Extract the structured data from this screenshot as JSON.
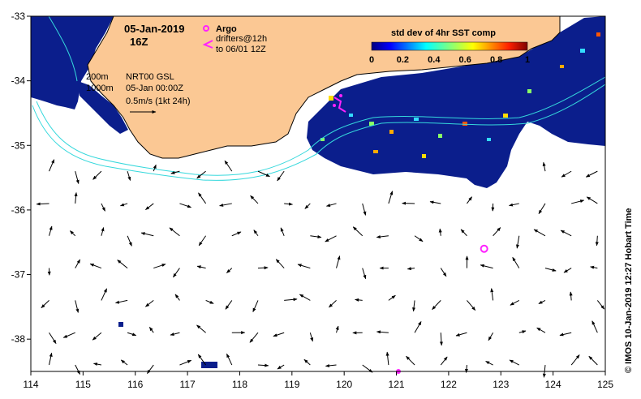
{
  "map": {
    "date_line": "05-Jan-2019",
    "time_line": "16Z",
    "argo_label": "Argo",
    "drifters_line1": "drifters@12h",
    "drifters_line2": "to 06/01 12Z",
    "contour_200": "200m",
    "contour_1000": "1000m",
    "product_line1": "NRT00 GSL",
    "product_line2": "05-Jan 00:00Z",
    "scale_label": "0.5m/s (1kt 24h)",
    "colorbar_title": "std dev of 4hr SST comp",
    "colorbar_ticks": [
      "0",
      "0.2",
      "0.4",
      "0.6",
      "0.8",
      "1"
    ],
    "credit": "© IMOS 10-Jan-2019 12:27 Hobart Time",
    "x_ticks": [
      "114",
      "115",
      "116",
      "117",
      "118",
      "119",
      "120",
      "121",
      "122",
      "123",
      "124",
      "125"
    ],
    "y_ticks": [
      "-33",
      "-34",
      "-35",
      "-36",
      "-37",
      "-38"
    ],
    "colors": {
      "land": "#fbc894",
      "ocean_data": "#0b1e8c",
      "contour": "#35d8dc",
      "argo": "#ff22ff",
      "axis": "#000000"
    },
    "argo_float": {
      "lon": 122.68,
      "lat": -36.6
    }
  }
}
